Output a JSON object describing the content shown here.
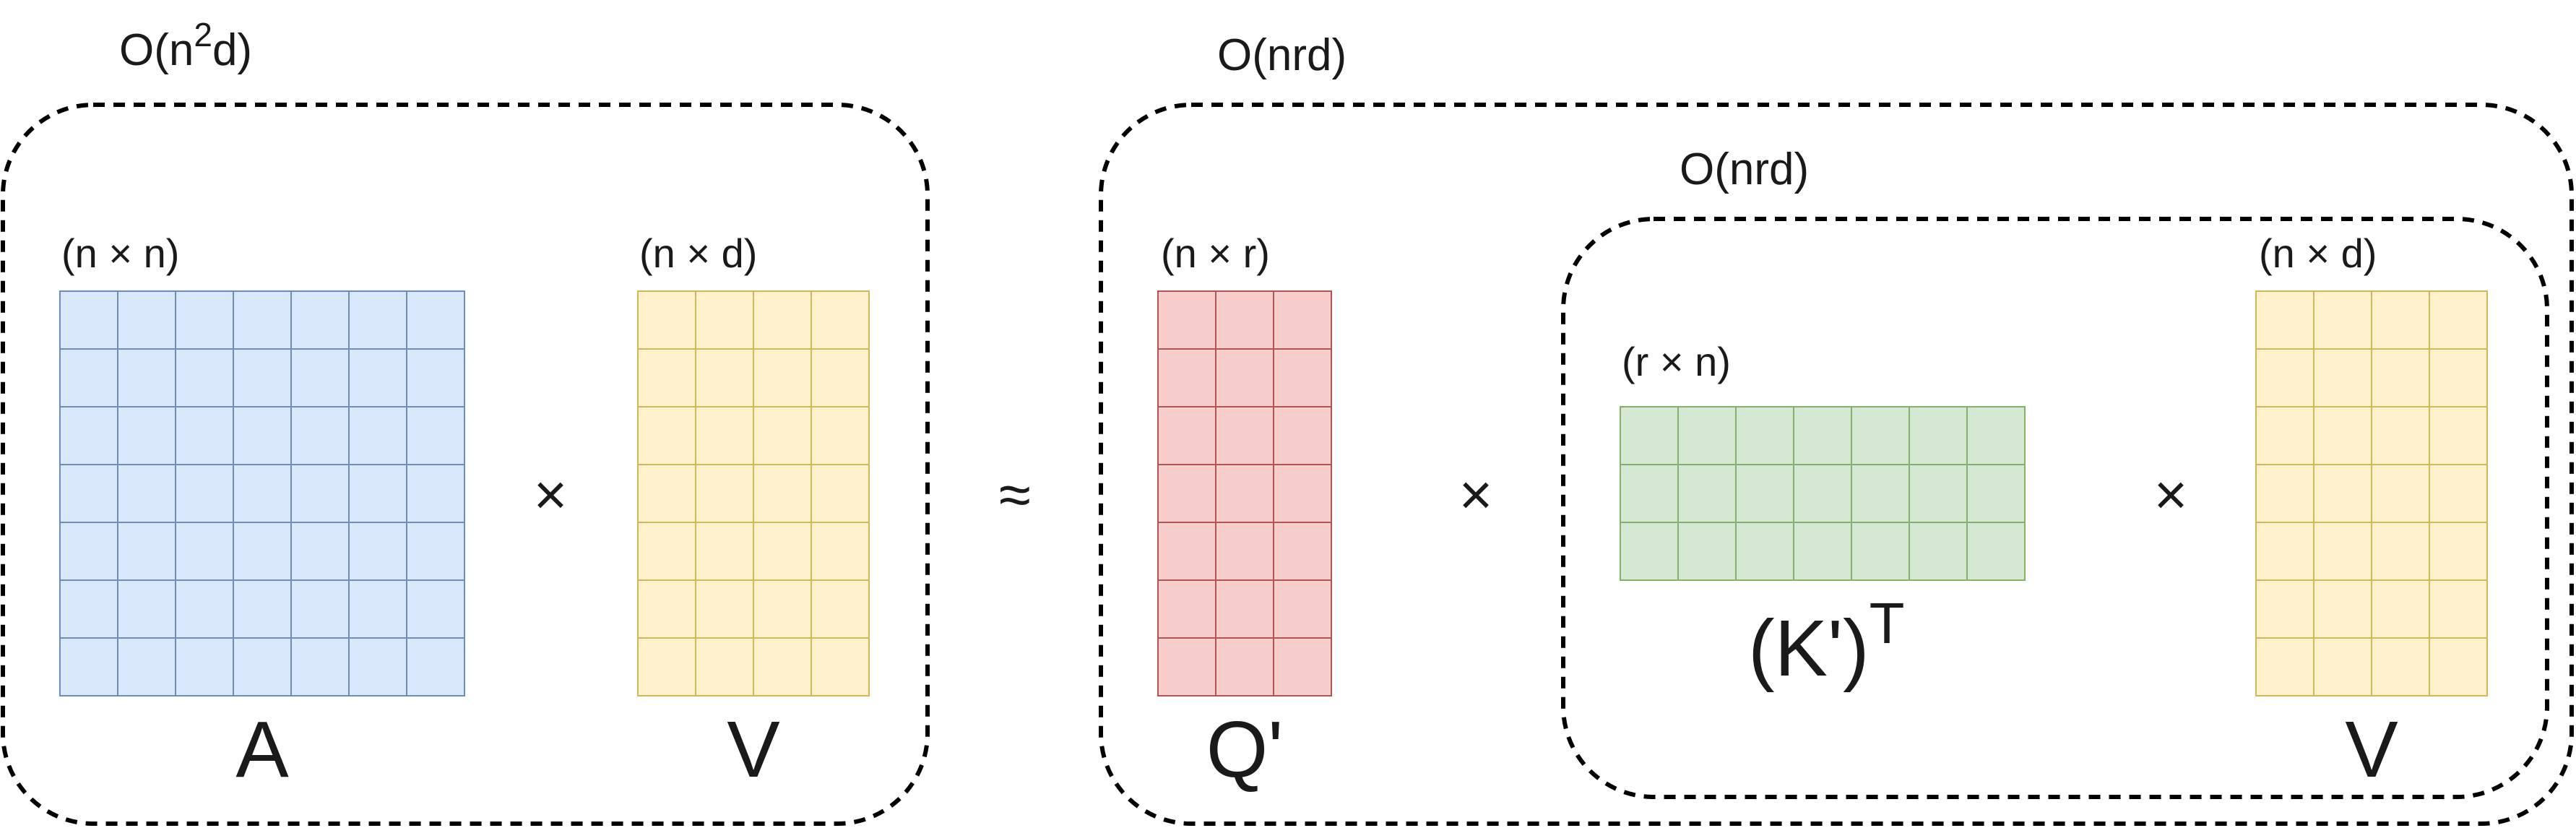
{
  "left_group": {
    "complexity": {
      "base": "O(n",
      "sup": "2",
      "tail": "d)"
    },
    "matrix_a": {
      "dims": "(n × n)",
      "name": "A",
      "rows": 7,
      "cols": 7
    },
    "times": "×",
    "matrix_v": {
      "dims": "(n × d)",
      "name": "V",
      "rows": 7,
      "cols": 4
    }
  },
  "approx": "≈",
  "right_group": {
    "complexity": "O(nrd)",
    "matrix_q": {
      "dims": "(n × r)",
      "name": "Q'",
      "rows": 7,
      "cols": 3
    },
    "times_1": "×",
    "inner_group": {
      "complexity": "O(nrd)",
      "matrix_k": {
        "dims": "(r × n)",
        "name": "(K')",
        "sup": "T",
        "rows": 3,
        "cols": 7
      },
      "times_2": "×",
      "matrix_v": {
        "dims": "(n × d)",
        "name": "V",
        "rows": 7,
        "cols": 4
      }
    }
  },
  "colors": {
    "blue_fill": "#dae8fc",
    "blue_stroke": "#6c8ebf",
    "yellow_fill": "#fff2cc",
    "yellow_stroke": "#d6b656",
    "red_fill": "#f8cecc",
    "red_stroke": "#b85450",
    "green_fill": "#d5e8d4",
    "green_stroke": "#82b366"
  }
}
